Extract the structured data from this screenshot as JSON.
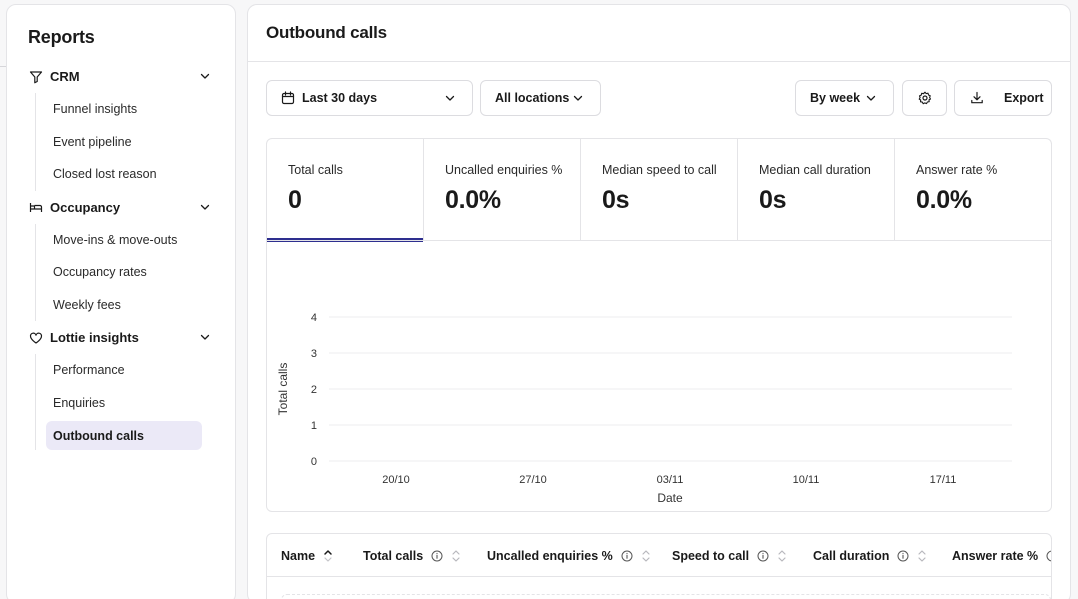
{
  "sidebar": {
    "title": "Reports",
    "sections": [
      {
        "label": "CRM",
        "items": [
          "Funnel insights",
          "Event pipeline",
          "Closed lost reason"
        ]
      },
      {
        "label": "Occupancy",
        "items": [
          "Move-ins & move-outs",
          "Occupancy rates",
          "Weekly fees"
        ]
      },
      {
        "label": "Lottie insights",
        "items": [
          "Performance",
          "Enquiries",
          "Outbound calls"
        ]
      }
    ],
    "active_item": "Outbound calls"
  },
  "header": {
    "title": "Outbound calls"
  },
  "toolbar": {
    "date_range": "Last 30 days",
    "locations": "All locations",
    "granularity": "By week",
    "export": "Export"
  },
  "kpis": [
    {
      "label": "Total calls",
      "value": "0"
    },
    {
      "label": "Uncalled enquiries %",
      "value": "0.0%"
    },
    {
      "label": "Median speed to call",
      "value": "0s"
    },
    {
      "label": "Median call duration",
      "value": "0s"
    },
    {
      "label": "Answer rate %",
      "value": "0.0%"
    }
  ],
  "chart_data": {
    "type": "line",
    "xlabel": "Date",
    "ylabel": "Total calls",
    "categories": [
      "20/10",
      "27/10",
      "03/11",
      "10/11",
      "17/11"
    ],
    "series": [
      {
        "values": [
          0,
          0,
          0,
          0,
          0
        ]
      }
    ],
    "ylim": [
      0,
      4
    ],
    "yticks": [
      0,
      1,
      2,
      3,
      4
    ],
    "grid": true,
    "colors": {
      "grid": "#ececef",
      "line": "#2e2f8f"
    }
  },
  "table": {
    "columns": [
      "Name",
      "Total calls",
      "Uncalled enquiries %",
      "Speed to call",
      "Call duration",
      "Answer rate %"
    ]
  },
  "colors": {
    "accent": "#2e2f8f",
    "active_bg": "#ebe9f7",
    "border": "#e4e4e7"
  }
}
